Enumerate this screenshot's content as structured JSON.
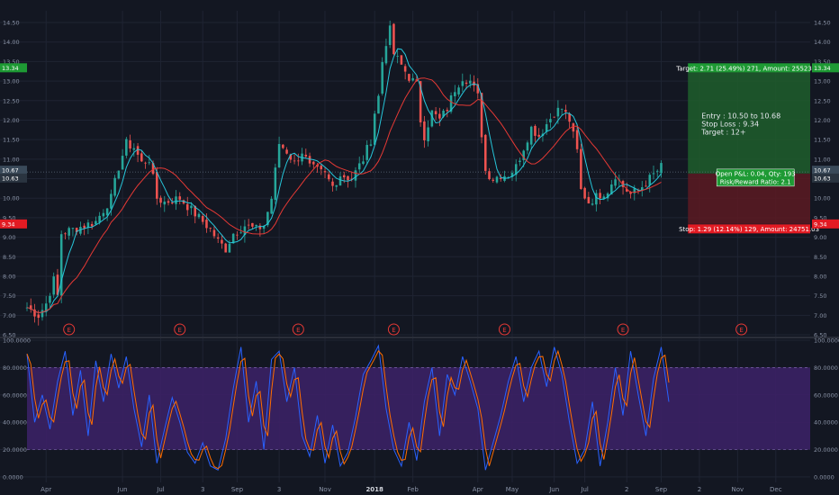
{
  "chart_data": [
    {
      "type": "candlestick",
      "title": "",
      "ylim": [
        6.5,
        14.8
      ],
      "y_ticks": [
        "6.50",
        "7.00",
        "7.50",
        "8.00",
        "8.50",
        "9.00",
        "9.50",
        "10.00",
        "10.50",
        "11.00",
        "11.50",
        "12.00",
        "12.50",
        "13.00",
        "13.50",
        "14.00",
        "14.50"
      ],
      "x_tick_labels": [
        "Apr",
        "Jun",
        "Jul",
        "3",
        "Sep",
        "3",
        "Nov",
        "2018",
        "Feb",
        "Apr",
        "May",
        "Jun",
        "Jul",
        "2",
        "Sep",
        "2",
        "Nov",
        "Dec"
      ],
      "x_tick_index": [
        5,
        25,
        35,
        46,
        55,
        66,
        78,
        91,
        101,
        118,
        127,
        138,
        146,
        157,
        166,
        176,
        186,
        196
      ],
      "grid": true,
      "x_end_index": 205,
      "price_path": [
        [
          0,
          7.2
        ],
        [
          3,
          7.0
        ],
        [
          5,
          7.3
        ],
        [
          7,
          7.9
        ],
        [
          8,
          7.5
        ],
        [
          9,
          9.1
        ],
        [
          12,
          9.2
        ],
        [
          15,
          9.3
        ],
        [
          18,
          9.4
        ],
        [
          22,
          10.0
        ],
        [
          24,
          10.8
        ],
        [
          26,
          11.4
        ],
        [
          28,
          11.3
        ],
        [
          30,
          10.9
        ],
        [
          32,
          11.0
        ],
        [
          34,
          10.0
        ],
        [
          36,
          9.9
        ],
        [
          40,
          10.0
        ],
        [
          44,
          9.6
        ],
        [
          48,
          9.2
        ],
        [
          50,
          8.9
        ],
        [
          52,
          8.7
        ],
        [
          54,
          9.1
        ],
        [
          57,
          9.3
        ],
        [
          60,
          9.2
        ],
        [
          62,
          9.3
        ],
        [
          64,
          10.0
        ],
        [
          65,
          10.7
        ],
        [
          66,
          11.4
        ],
        [
          68,
          11.2
        ],
        [
          70,
          10.9
        ],
        [
          72,
          11.2
        ],
        [
          74,
          10.8
        ],
        [
          76,
          10.7
        ],
        [
          78,
          10.6
        ],
        [
          80,
          10.3
        ],
        [
          82,
          10.6
        ],
        [
          85,
          10.5
        ],
        [
          88,
          11.0
        ],
        [
          90,
          11.5
        ],
        [
          91,
          12.2
        ],
        [
          92,
          12.6
        ],
        [
          93,
          13.5
        ],
        [
          94,
          14.0
        ],
        [
          95,
          14.3
        ],
        [
          96,
          13.7
        ],
        [
          98,
          13.4
        ],
        [
          100,
          13.1
        ],
        [
          102,
          12.9
        ],
        [
          103,
          12.0
        ],
        [
          104,
          11.6
        ],
        [
          106,
          12.2
        ],
        [
          108,
          12.0
        ],
        [
          110,
          12.3
        ],
        [
          112,
          12.8
        ],
        [
          114,
          13.1
        ],
        [
          116,
          13.0
        ],
        [
          118,
          12.6
        ],
        [
          120,
          10.7
        ],
        [
          122,
          10.5
        ],
        [
          124,
          10.6
        ],
        [
          126,
          10.6
        ],
        [
          128,
          10.8
        ],
        [
          130,
          11.3
        ],
        [
          132,
          11.8
        ],
        [
          134,
          11.6
        ],
        [
          136,
          11.9
        ],
        [
          138,
          12.2
        ],
        [
          140,
          12.3
        ],
        [
          142,
          12.0
        ],
        [
          144,
          11.2
        ],
        [
          145,
          10.2
        ],
        [
          147,
          9.9
        ],
        [
          150,
          10.1
        ],
        [
          152,
          10.2
        ],
        [
          154,
          10.6
        ],
        [
          156,
          10.3
        ],
        [
          158,
          10.1
        ],
        [
          160,
          10.2
        ],
        [
          162,
          10.4
        ],
        [
          164,
          10.6
        ],
        [
          166,
          10.8
        ]
      ],
      "series": [
        {
          "name": "",
          "type": "ma-fast",
          "color": "#26c6da"
        },
        {
          "name": "",
          "type": "ma-slow",
          "color": "#e53935"
        }
      ],
      "earnings_markers_index": [
        11,
        40,
        71,
        96,
        125,
        156,
        187
      ],
      "earnings_label": "E",
      "price_tags": {
        "target": {
          "value": 13.34,
          "label": "13.34",
          "color": "#1e9a34"
        },
        "current": {
          "value": 10.67,
          "label": "10.67",
          "color": "#3a4a5a"
        },
        "entry": {
          "value": 10.63,
          "label": "10.63",
          "color": "#2a3440"
        },
        "stop": {
          "value": 9.34,
          "label": "9.34",
          "color": "#e31b23"
        }
      },
      "position": {
        "start_index": 173,
        "end_index": 205,
        "entry": 10.63,
        "target": 13.34,
        "stop": 9.34,
        "target_label": "Target: 2.71 (25.49%) 271, Amount: 25523.03",
        "stop_label": "Stop: 1.29 (12.14%) 129, Amount: 24751.03",
        "pnl_label": "Open P&L: 0.04, Qty: 193",
        "rr_label": "Risk/Reward Ratio: 2.1",
        "note_lines": [
          "Entry : 10.50 to 10.68",
          "Stop Loss : 9.34",
          "Target : 12+"
        ]
      },
      "colors": {
        "up": "#26a69a",
        "down": "#ef5350",
        "target_zone": "#1e5e2c",
        "stop_zone": "#5c1a22"
      }
    },
    {
      "type": "line",
      "title": "",
      "ylim": [
        -4,
        100
      ],
      "y_ticks": [
        "0.0000",
        "20.0000",
        "40.0000",
        "60.0000",
        "80.0000",
        "100.0000"
      ],
      "band": {
        "upper": 80,
        "lower": 20,
        "color": "#3b2165"
      },
      "oscillator_path": [
        [
          0,
          90
        ],
        [
          2,
          40
        ],
        [
          4,
          60
        ],
        [
          6,
          35
        ],
        [
          8,
          70
        ],
        [
          10,
          92
        ],
        [
          12,
          45
        ],
        [
          14,
          78
        ],
        [
          16,
          30
        ],
        [
          18,
          85
        ],
        [
          20,
          55
        ],
        [
          22,
          90
        ],
        [
          24,
          65
        ],
        [
          26,
          88
        ],
        [
          28,
          50
        ],
        [
          30,
          22
        ],
        [
          32,
          60
        ],
        [
          34,
          10
        ],
        [
          36,
          35
        ],
        [
          38,
          58
        ],
        [
          40,
          40
        ],
        [
          42,
          18
        ],
        [
          44,
          10
        ],
        [
          46,
          25
        ],
        [
          48,
          8
        ],
        [
          50,
          5
        ],
        [
          52,
          28
        ],
        [
          54,
          65
        ],
        [
          56,
          95
        ],
        [
          58,
          40
        ],
        [
          60,
          70
        ],
        [
          62,
          20
        ],
        [
          64,
          86
        ],
        [
          66,
          92
        ],
        [
          68,
          55
        ],
        [
          70,
          80
        ],
        [
          72,
          30
        ],
        [
          74,
          15
        ],
        [
          76,
          45
        ],
        [
          78,
          10
        ],
        [
          80,
          38
        ],
        [
          82,
          8
        ],
        [
          84,
          18
        ],
        [
          86,
          44
        ],
        [
          88,
          75
        ],
        [
          90,
          85
        ],
        [
          92,
          96
        ],
        [
          94,
          50
        ],
        [
          96,
          20
        ],
        [
          98,
          8
        ],
        [
          100,
          40
        ],
        [
          102,
          12
        ],
        [
          104,
          55
        ],
        [
          106,
          80
        ],
        [
          108,
          30
        ],
        [
          110,
          75
        ],
        [
          112,
          60
        ],
        [
          114,
          88
        ],
        [
          116,
          70
        ],
        [
          118,
          50
        ],
        [
          120,
          5
        ],
        [
          122,
          25
        ],
        [
          124,
          45
        ],
        [
          126,
          70
        ],
        [
          128,
          88
        ],
        [
          130,
          55
        ],
        [
          132,
          80
        ],
        [
          134,
          92
        ],
        [
          136,
          66
        ],
        [
          138,
          95
        ],
        [
          140,
          75
        ],
        [
          142,
          40
        ],
        [
          144,
          10
        ],
        [
          146,
          20
        ],
        [
          148,
          55
        ],
        [
          150,
          8
        ],
        [
          152,
          40
        ],
        [
          154,
          80
        ],
        [
          156,
          45
        ],
        [
          158,
          92
        ],
        [
          160,
          60
        ],
        [
          162,
          30
        ],
        [
          164,
          72
        ],
        [
          166,
          95
        ],
        [
          168,
          55
        ]
      ],
      "series": [
        {
          "name": "",
          "color": "#2962ff"
        },
        {
          "name": "",
          "color": "#ff6d00"
        }
      ]
    }
  ]
}
